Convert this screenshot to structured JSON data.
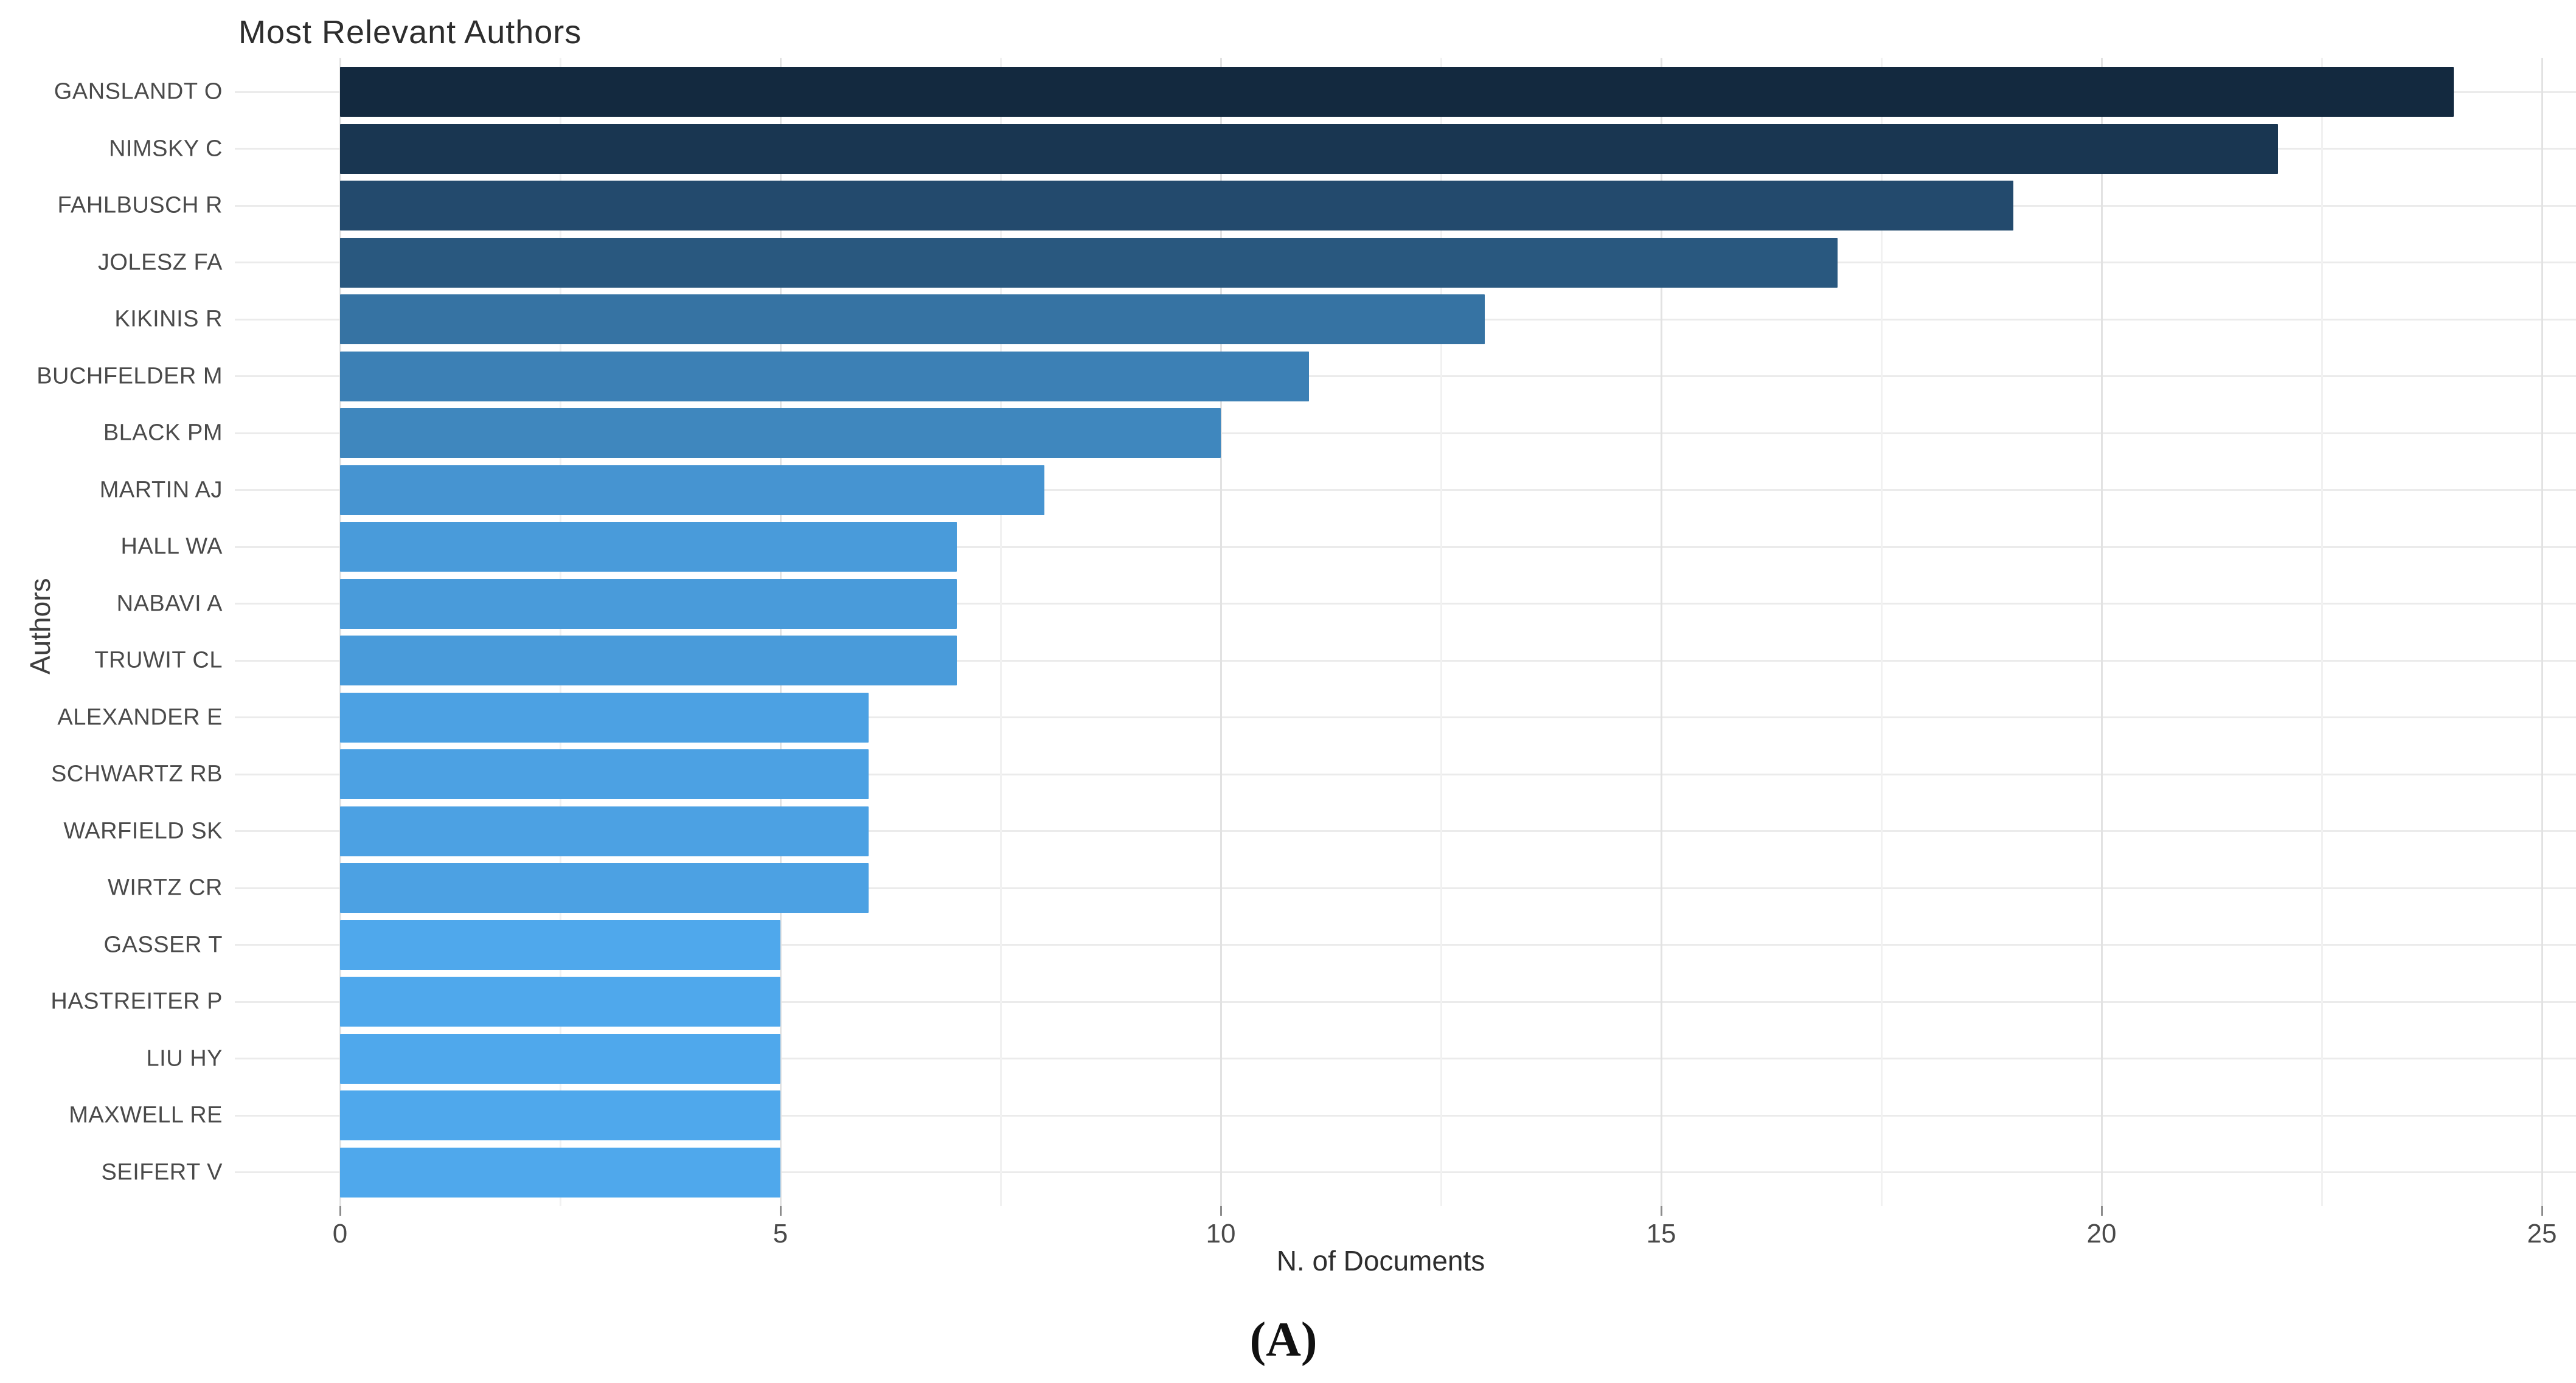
{
  "figure_label": "(A)",
  "chart_data": {
    "type": "bar",
    "orientation": "horizontal",
    "title": "Most Relevant Authors",
    "xlabel": "N. of Documents",
    "ylabel": "Authors",
    "categories": [
      "GANSLANDT O",
      "NIMSKY C",
      "FAHLBUSCH R",
      "JOLESZ FA",
      "KIKINIS R",
      "BUCHFELDER M",
      "BLACK PM",
      "MARTIN AJ",
      "HALL WA",
      "NABAVI A",
      "TRUWIT CL",
      "ALEXANDER E",
      "SCHWARTZ RB",
      "WARFIELD SK",
      "WIRTZ CR",
      "GASSER T",
      "HASTREITER P",
      "LIU HY",
      "MAXWELL RE",
      "SEIFERT V"
    ],
    "values": [
      24,
      22,
      19,
      17,
      13,
      11,
      10,
      8,
      7,
      7,
      7,
      6,
      6,
      6,
      6,
      5,
      5,
      5,
      5,
      5
    ],
    "xlim": [
      0,
      25
    ],
    "x_major_ticks": [
      0,
      5,
      10,
      15,
      20,
      25
    ],
    "x_minor_ticks": [
      2.5,
      7.5,
      12.5,
      17.5,
      22.5
    ],
    "grid": true,
    "legend_position": "none",
    "color_scale": {
      "min_value": 5,
      "max_value": 24,
      "light": "#4FA8EC",
      "dark": "#13293F"
    },
    "colors": {
      "background": "#ffffff",
      "title_text": "#2d2d2d",
      "axis_text": "#4a4a4a",
      "grid_major": "#e2e2e2",
      "grid_minor": "#f1f1f1",
      "grid_row": "#ebebeb",
      "tick_mark": "#8c8c8c"
    }
  }
}
